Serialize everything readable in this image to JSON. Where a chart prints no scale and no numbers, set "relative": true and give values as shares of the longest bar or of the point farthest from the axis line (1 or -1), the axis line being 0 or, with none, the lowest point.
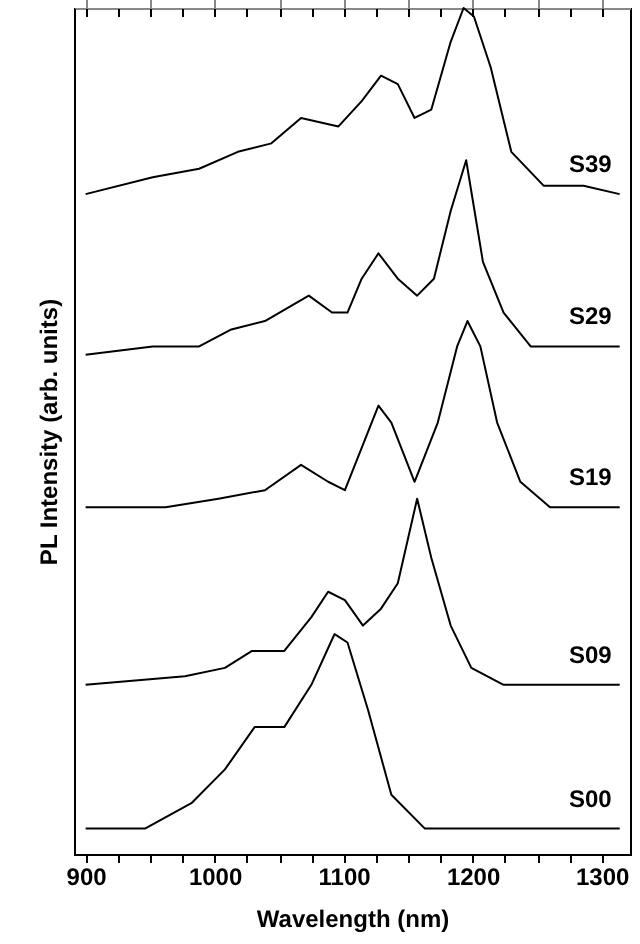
{
  "chart_data": {
    "type": "line",
    "relative": true,
    "xlabel": "Wavelength (nm)",
    "ylabel": "PL Intensity (arb. units)",
    "xlim": [
      891,
      1322
    ],
    "xticks": [
      900,
      {
        "value": 925,
        "label": null
      },
      {
        "value": 950,
        "label": null
      },
      {
        "value": 975,
        "label": null
      },
      1000,
      {
        "value": 1025,
        "label": null
      },
      {
        "value": 1050,
        "label": null
      },
      {
        "value": 1075,
        "label": null
      },
      1100,
      {
        "value": 1125,
        "label": null
      },
      {
        "value": 1150,
        "label": null
      },
      {
        "value": 1175,
        "label": null
      },
      1200,
      {
        "value": 1225,
        "label": null
      },
      {
        "value": 1250,
        "label": null
      },
      {
        "value": 1275,
        "label": null
      },
      1300
    ],
    "grid": false,
    "marker": "none",
    "line_style": "solid",
    "series": [
      {
        "name": "S39",
        "color": "#000000",
        "x": [
          900,
          952,
          988,
          1018,
          1044,
          1067,
          1096,
          1114,
          1129,
          1142,
          1155,
          1168,
          1183,
          1193,
          1201,
          1214,
          1230,
          1255,
          1286,
          1314
        ],
        "values": [
          0.78,
          0.8,
          0.81,
          0.83,
          0.84,
          0.87,
          0.86,
          0.89,
          0.92,
          0.91,
          0.87,
          0.88,
          0.96,
          1,
          0.99,
          0.93,
          0.83,
          0.79,
          0.79,
          0.78
        ]
      },
      {
        "name": "S29",
        "color": "#000000",
        "x": [
          900,
          952,
          988,
          1013,
          1039,
          1073,
          1091,
          1103,
          1114,
          1127,
          1142,
          1157,
          1170,
          1183,
          1195,
          1208,
          1224,
          1245,
          1276,
          1314
        ],
        "values": [
          0.59,
          0.6,
          0.6,
          0.62,
          0.63,
          0.66,
          0.64,
          0.64,
          0.68,
          0.71,
          0.68,
          0.66,
          0.68,
          0.76,
          0.82,
          0.7,
          0.64,
          0.6,
          0.6,
          0.6
        ]
      },
      {
        "name": "S19",
        "color": "#000000",
        "x": [
          900,
          962,
          1003,
          1039,
          1067,
          1088,
          1101,
          1114,
          1127,
          1137,
          1155,
          1173,
          1188,
          1196,
          1206,
          1219,
          1237,
          1260,
          1314
        ],
        "values": [
          0.41,
          0.41,
          0.42,
          0.43,
          0.46,
          0.44,
          0.43,
          0.48,
          0.53,
          0.51,
          0.44,
          0.51,
          0.6,
          0.63,
          0.6,
          0.51,
          0.44,
          0.41,
          0.41
        ]
      },
      {
        "name": "S09",
        "color": "#000000",
        "x": [
          900,
          977,
          1008,
          1029,
          1054,
          1075,
          1088,
          1101,
          1115,
          1129,
          1142,
          1157,
          1168,
          1183,
          1199,
          1224,
          1314
        ],
        "values": [
          0.2,
          0.21,
          0.22,
          0.24,
          0.24,
          0.28,
          0.31,
          0.3,
          0.27,
          0.29,
          0.32,
          0.42,
          0.35,
          0.27,
          0.22,
          0.2,
          0.2
        ]
      },
      {
        "name": "S00",
        "color": "#000000",
        "x": [
          900,
          946,
          982,
          1008,
          1031,
          1054,
          1075,
          1093,
          1103,
          1119,
          1137,
          1163,
          1314
        ],
        "values": [
          0.03,
          0.03,
          0.06,
          0.1,
          0.15,
          0.15,
          0.2,
          0.26,
          0.25,
          0.17,
          0.07,
          0.03,
          0.03
        ]
      }
    ]
  }
}
